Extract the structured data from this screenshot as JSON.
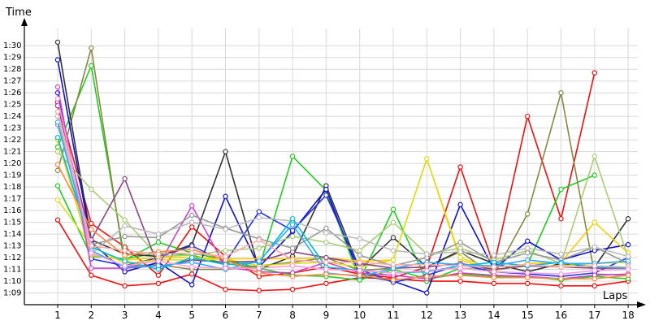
{
  "chart_data": {
    "type": "line",
    "ylabel": "Time",
    "xlabel": "Laps",
    "x": [
      1,
      2,
      3,
      4,
      5,
      6,
      7,
      8,
      9,
      10,
      11,
      12,
      13,
      14,
      15,
      16,
      17,
      18
    ],
    "x_tick_labels": [
      "1",
      "2",
      "3",
      "4",
      "5",
      "6",
      "7",
      "8",
      "9",
      "10",
      "11",
      "12",
      "13",
      "14",
      "15",
      "16",
      "17",
      "18"
    ],
    "y_unit": "seconds",
    "y_ticks": [
      69,
      70,
      71,
      72,
      73,
      74,
      75,
      76,
      77,
      78,
      79,
      80,
      81,
      82,
      83,
      84,
      85,
      86,
      87,
      88,
      89,
      90
    ],
    "y_tick_labels": [
      "1:09",
      "1:10",
      "1:11",
      "1:12",
      "1:13",
      "1:14",
      "1:15",
      "1:16",
      "1:17",
      "1:18",
      "1:19",
      "1:20",
      "1:21",
      "1:22",
      "1:23",
      "1:24",
      "1:25",
      "1:26",
      "1:27",
      "1:28",
      "1:29",
      "1:30"
    ],
    "ylim": [
      68.0,
      90.5
    ],
    "grid": true,
    "legend": false,
    "series": [
      {
        "color": "#ee1111",
        "values": [
          75.2,
          70.5,
          69.6,
          69.8,
          70.6,
          69.3,
          69.2,
          69.3,
          69.8,
          70.3,
          70.2,
          70.0,
          70.0,
          69.8,
          69.8,
          69.6,
          69.6,
          70.0
        ]
      },
      {
        "color": "#ee1111",
        "values": [
          85.2,
          74.9,
          72.9,
          70.5,
          74.6,
          72.1,
          70.4,
          70.7,
          71.2,
          70.6,
          70.3,
          71.2,
          79.7,
          71.3,
          84.0,
          75.3,
          87.7,
          null
        ]
      },
      {
        "color": "#22cc22",
        "values": [
          81.4,
          88.3,
          71.8,
          73.3,
          72.4,
          71.8,
          71.1,
          70.5,
          70.4,
          70.1,
          71.0,
          70.2,
          70.6,
          70.4,
          70.4,
          70.1,
          70.4,
          70.2
        ]
      },
      {
        "color": "#22cc22",
        "values": [
          78.1,
          72.1,
          71.9,
          72.4,
          72.2,
          71.5,
          71.1,
          80.6,
          77.7,
          70.1,
          76.1,
          70.0,
          71.1,
          70.9,
          71.4,
          77.8,
          79.0,
          null
        ]
      },
      {
        "color": "#888844",
        "values": [
          79.4,
          89.8,
          71.3,
          71.4,
          71.0,
          71.0,
          71.3,
          71.6,
          72.0,
          70.9,
          71.1,
          71.2,
          72.5,
          70.5,
          75.7,
          86.0,
          70.6,
          70.5
        ]
      },
      {
        "color": "#333333",
        "values": [
          90.3,
          73.5,
          72.3,
          72.1,
          73.1,
          81.0,
          71.0,
          72.1,
          78.1,
          71.0,
          73.7,
          71.2,
          72.6,
          71.5,
          70.8,
          71.5,
          71.2,
          75.3
        ]
      },
      {
        "color": "#1111cc",
        "values": [
          88.8,
          73.3,
          70.8,
          71.6,
          69.7,
          77.2,
          71.2,
          74.2,
          77.8,
          70.5,
          70.0,
          69.0,
          76.5,
          71.0,
          73.4,
          71.8,
          72.6,
          73.1
        ]
      },
      {
        "color": "#2233dd",
        "values": [
          86.0,
          71.9,
          71.3,
          72.0,
          73.0,
          71.6,
          75.9,
          74.3,
          77.3,
          71.0,
          69.9,
          70.5,
          71.4,
          70.8,
          70.6,
          70.4,
          70.7,
          72.0
        ]
      },
      {
        "color": "#ffcc00",
        "values": [
          82.0,
          72.2,
          71.8,
          72.0,
          72.0,
          71.9,
          71.9,
          71.9,
          72.0,
          71.7,
          71.8,
          80.4,
          71.8,
          70.9,
          71.5,
          71.6,
          75.0,
          72.4
        ]
      },
      {
        "color": "#dddd22",
        "values": [
          76.9,
          73.0,
          71.5,
          71.8,
          71.8,
          71.9,
          71.3,
          71.5,
          71.6,
          71.2,
          71.8,
          80.4,
          72.0,
          71.0,
          71.3,
          71.3,
          71.5,
          71.6
        ]
      },
      {
        "color": "#aacc77",
        "values": [
          81.0,
          77.8,
          75.2,
          72.1,
          72.2,
          72.6,
          72.8,
          73.8,
          73.3,
          72.6,
          75.0,
          72.3,
          72.8,
          71.8,
          72.6,
          71.5,
          80.6,
          72.0
        ]
      },
      {
        "color": "#884488",
        "values": [
          84.9,
          73.5,
          78.7,
          71.2,
          71.8,
          71.6,
          71.7,
          72.5,
          72.0,
          71.5,
          71.1,
          71.2,
          71.5,
          71.0,
          71.3,
          71.2,
          71.1,
          71.1
        ]
      },
      {
        "color": "#cc44cc",
        "values": [
          86.5,
          71.1,
          71.1,
          71.3,
          76.4,
          71.2,
          70.8,
          70.7,
          71.6,
          70.7,
          70.5,
          70.2,
          70.7,
          70.5,
          70.4,
          70.2,
          70.5,
          70.6
        ]
      },
      {
        "color": "#999999",
        "values": [
          83.3,
          73.1,
          73.8,
          73.7,
          75.6,
          74.5,
          73.6,
          72.8,
          74.5,
          72.2,
          71.3,
          72.0,
          73.3,
          71.6,
          72.4,
          71.8,
          72.9,
          71.5
        ]
      },
      {
        "color": "#bbbbbb",
        "values": [
          84.0,
          72.3,
          74.7,
          74.0,
          75.0,
          74.4,
          75.4,
          75.1,
          74.1,
          73.6,
          72.6,
          72.3,
          72.5,
          72.2,
          72.8,
          72.3,
          72.9,
          72.1
        ]
      },
      {
        "color": "#00bbdd",
        "values": [
          82.2,
          72.9,
          71.7,
          71.0,
          72.0,
          71.4,
          71.6,
          75.3,
          71.2,
          70.9,
          70.7,
          70.8,
          71.3,
          71.6,
          71.3,
          71.6,
          71.2,
          71.1
        ]
      },
      {
        "color": "#33aaff",
        "values": [
          83.5,
          72.6,
          71.2,
          71.3,
          71.6,
          71.0,
          71.7,
          74.8,
          70.7,
          70.4,
          71.1,
          71.6,
          71.4,
          71.3,
          71.8,
          71.5,
          71.5,
          71.7
        ]
      },
      {
        "color": "#ff8844",
        "values": [
          79.9,
          74.4,
          72.2,
          72.5,
          72.7,
          71.8,
          70.7,
          70.4,
          70.6,
          70.5,
          70.1,
          70.4,
          70.5,
          70.3,
          70.3,
          70.2,
          70.2,
          70.5
        ]
      },
      {
        "color": "#ffaaaa",
        "values": [
          84.4,
          73.0,
          72.6,
          72.3,
          72.4,
          72.1,
          73.5,
          71.8,
          71.6,
          71.6,
          71.4,
          71.4,
          71.3,
          71.2,
          71.4,
          71.2,
          71.3,
          71.2
        ]
      },
      {
        "color": "#ff99dd",
        "values": [
          85.5,
          72.4,
          71.3,
          71.7,
          71.2,
          71.1,
          71.1,
          71.3,
          71.0,
          70.9,
          70.7,
          70.9,
          71.1,
          70.8,
          70.7,
          70.6,
          70.9,
          71.0
        ]
      }
    ]
  }
}
